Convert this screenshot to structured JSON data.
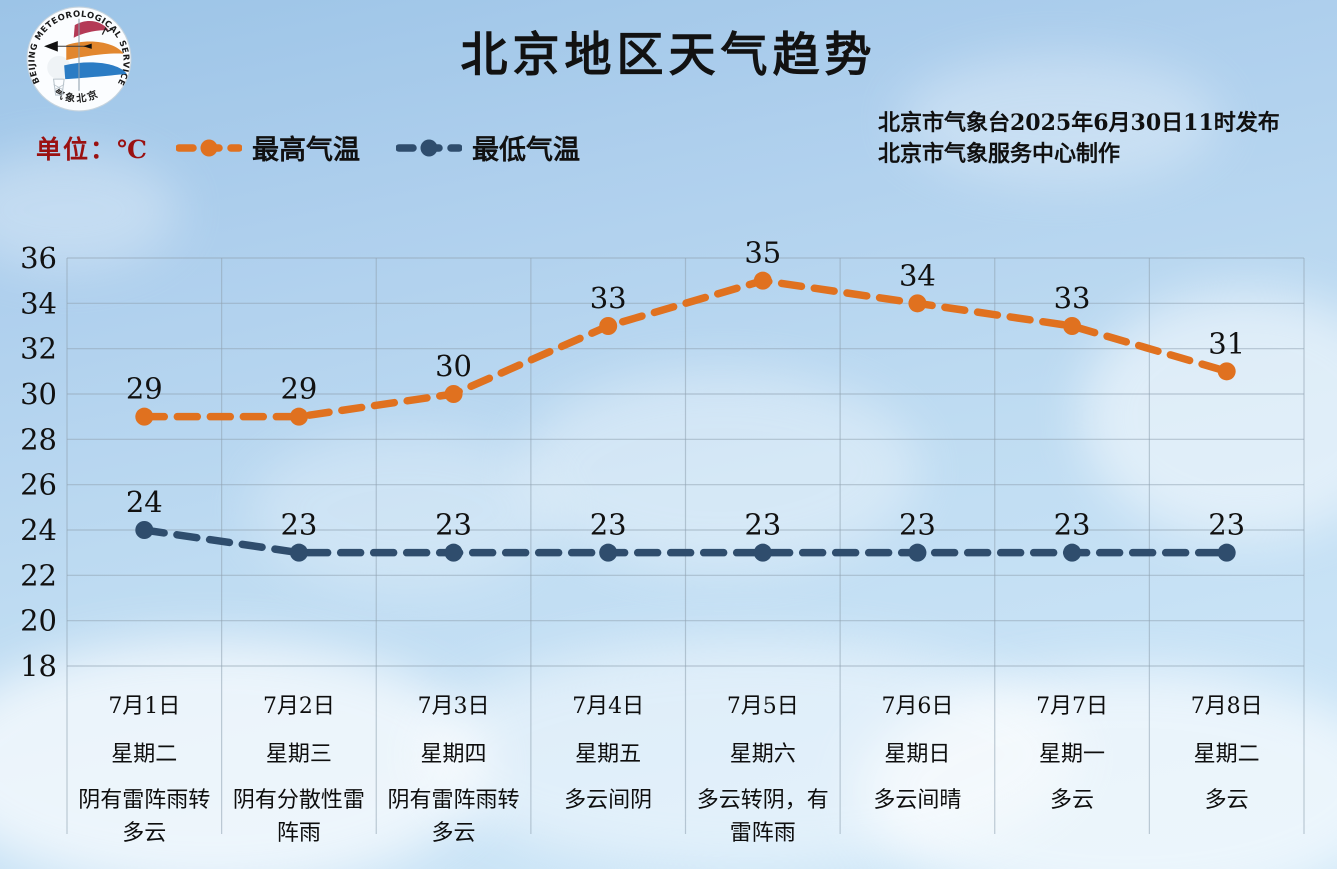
{
  "header": {
    "title": "北京地区天气趋势",
    "unit_label": "单位：℃",
    "publish_line1": "北京市气象台2025年6月30日11时发布",
    "publish_line2": "北京市气象服务中心制作"
  },
  "logo": {
    "arc_text": "BEIJING METEOROLOGICAL SERVICE",
    "bottom_text": "气象北京"
  },
  "colors": {
    "high_temp": "#E0711F",
    "low_temp": "#2F4D6D",
    "unit_text": "#9A1111",
    "gridline": "#8FA3B0"
  },
  "chart_data": {
    "type": "line",
    "title": "北京地区天气趋势",
    "unit": "℃",
    "ylim": [
      18,
      36
    ],
    "ytick_step": 2,
    "grid": true,
    "legend_position": "top-left",
    "categories": [
      "7月1日",
      "7月2日",
      "7月3日",
      "7月4日",
      "7月5日",
      "7月6日",
      "7月7日",
      "7月8日"
    ],
    "weekdays": [
      "星期二",
      "星期三",
      "星期四",
      "星期五",
      "星期六",
      "星期日",
      "星期一",
      "星期二"
    ],
    "weather": [
      "阴有雷阵雨转多云",
      "阴有分散性雷阵雨",
      "阴有雷阵雨转多云",
      "多云间阴",
      "多云转阴，有雷阵雨",
      "多云间晴",
      "多云",
      "多云"
    ],
    "series": [
      {
        "name": "最高气温",
        "color": "#E0711F",
        "values": [
          29,
          29,
          30,
          33,
          35,
          34,
          33,
          31
        ]
      },
      {
        "name": "最低气温",
        "color": "#2F4D6D",
        "values": [
          24,
          23,
          23,
          23,
          23,
          23,
          23,
          23
        ]
      }
    ]
  }
}
